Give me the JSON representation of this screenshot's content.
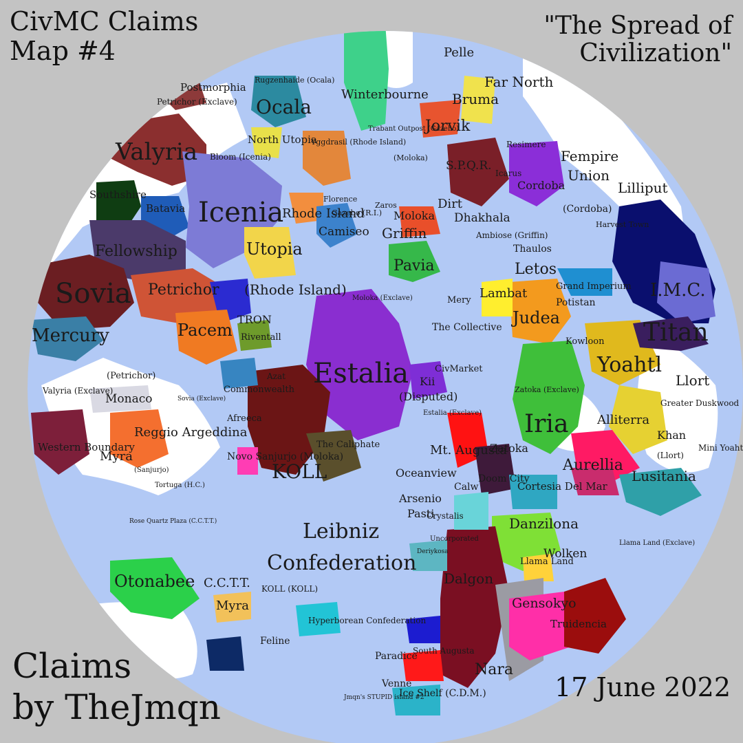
{
  "header": {
    "title_line1": "CivMC Claims",
    "title_line2": "Map #4",
    "subtitle_line1": "\"The Spread of",
    "subtitle_line2": "Civilization\""
  },
  "footer": {
    "credit_line1": "Claims",
    "credit_line2": "by TheJmqn",
    "date": "17 June 2022"
  },
  "colors": {
    "background": "#c3c3c3",
    "ocean": "#b2c9f5",
    "land": "#ffffff"
  },
  "labels": {
    "valyria": "Valyria",
    "southshire": "Southshire",
    "batavia": "Batavia",
    "icenia": "Icenia",
    "fellowship": "Fellowship",
    "sovia": "Sovia",
    "petrichor": "Petrichor",
    "petrichor_exclave": "Petrichor (Exclave)",
    "mercury": "Mercury",
    "postmorphia": "Postmorphia",
    "rugzenhaide": "Rugzenhaide (Ocala)",
    "ocala": "Ocala",
    "winterbourne": "Winterbourne",
    "north_utopia": "North Utopia",
    "bloom": "Bloom (Icenia)",
    "rhode_island": "Rhode Island",
    "utopia": "Utopia",
    "rhode_island_paren": "(Rhode Island)",
    "yggdrasil": "Yggdrasil (Rhode Island)",
    "trabant": "Trabant Outpost (Gazebo)",
    "florence": "Florence",
    "gazebo": "Gazebo (R.I.)",
    "camiseo": "Camiseo",
    "zaros": "Zaros",
    "moloka": "Moloka",
    "moloka_small": "(Moloka)",
    "griffin": "Griffin",
    "pavia": "Pavia",
    "jorvik": "Jorvik",
    "bruma": "Bruma",
    "far_north": "Far North",
    "pelle": "Pelle",
    "spqr": "S.P.Q.R.",
    "dirt": "Dirt",
    "dhakhala": "Dhakhala",
    "ambiose": "Ambiose (Griffin)",
    "icarus": "Icarus",
    "resimere": "Resimere",
    "cordoba": "Cordoba",
    "fempire": "Fempire",
    "union": "Union",
    "lilliput": "Lilliput",
    "cordoba_paren": "(Cordoba)",
    "harvest_town": "Harvest Town",
    "thaulos": "Thaulos",
    "letos": "Letos",
    "grand_imperium": "Grand Imperium",
    "potistan": "Potistan",
    "imc": "I.M.C.",
    "titan": "Titan",
    "yoahtl": "Yoahtl",
    "judea": "Judea",
    "lambat": "Lambat",
    "mery": "Mery",
    "kowloon": "Kowloon",
    "llort": "Llort",
    "greater_duskwood": "Greater Duskwood",
    "khan": "Khan",
    "mini_yoahtl": "Mini Yoahtl",
    "llort_paren": "(Llort)",
    "alliterra": "Alliterra",
    "aurellia": "Aurellia",
    "lusitania": "Lusitania",
    "iria": "Iria",
    "zatoka_exclave": "Zatoka (Exclave)",
    "zatoka": "Zatoka",
    "the_collective": "The Collective",
    "moloka_exclave": "Moloka (Exclave)",
    "estalia": "Estalia",
    "kii": "Kii",
    "disputed": "(Disputed)",
    "civmarket": "CivMarket",
    "estalia_exclave": "Estalia (Exclave)",
    "mt_augusta": "Mt. Augusta",
    "tron": "TRON",
    "riventall": "Riventall",
    "pacem": "Pacem",
    "commonwealth": "Commonwealth",
    "azat": "Azat",
    "monaco": "Monaco",
    "sovia_exclave": "Sovia (Exclave)",
    "petrichor_paren": "(Petrichor)",
    "valyria_exclave": "Valyria (Exclave)",
    "western_boundary": "Western Boundary",
    "myra": "Myra",
    "reggio": "Reggio Argeddina",
    "sanjurjo_small": "(Sanjurjo)",
    "afreeca": "Afreeca",
    "novo_sanjurjo": "Novo Sanjurjo (Moloka)",
    "koll": "KOLL",
    "the_caliphate": "The Caliphate",
    "oceanview": "Oceanview",
    "tortuga": "Tortuga (H.C.)",
    "rose_quartz": "Rose Quartz Plaza (C.C.T.T.)",
    "arsenio": "Arsenio",
    "pasti": "Pasti",
    "crystalis": "Crystalis",
    "calw": "Calw",
    "doom_city": "Doom City",
    "cortesia": "Cortesia Del Mar",
    "danzilona": "Danzilona",
    "leibniz": "Leibniz",
    "confederation": "Confederation",
    "wolken": "Wolken",
    "llama_land": "Llama Land",
    "llama_land_exclave": "Llama Land (Exclave)",
    "otonabee": "Otonabee",
    "cctt": "C.C.T.T.",
    "myra_south": "Myra",
    "koll_south": "KOLL (KOLL)",
    "feline": "Feline",
    "hyperborean": "Hyperborean Confederation",
    "south_augusta": "South Augusta",
    "dalgon": "Dalgon",
    "gensokyo": "Gensokyo",
    "truidencia": "Truidencia",
    "nara": "Nara",
    "paradice": "Paradice",
    "venne": "Venne",
    "ice_shelf": "Ice Shelf (C.D.M.)",
    "jmqn_island": "Jmqn's STUPID island #2",
    "deriykosa": "Deriykosa",
    "uncorporated": "Uncorporated"
  }
}
